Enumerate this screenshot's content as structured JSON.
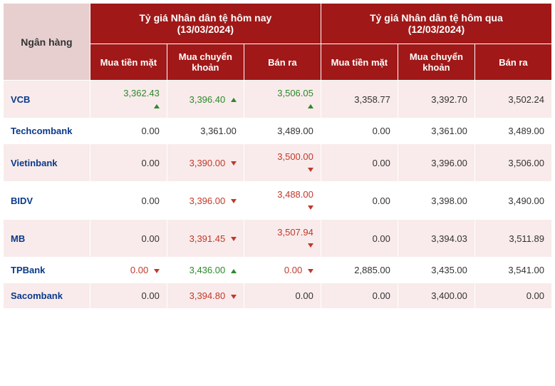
{
  "type": "table",
  "colors": {
    "header_bg": "#a01818",
    "header_text": "#ffffff",
    "bank_header_bg": "#e7cfcf",
    "row_odd_bg": "#f9ebeb",
    "row_even_bg": "#ffffff",
    "bank_link": "#0a3a8b",
    "up": "#2a8a2a",
    "down": "#c0392b",
    "border": "#ffffff"
  },
  "header": {
    "bank_col": "Ngân hàng",
    "today_group": "Tỷ giá Nhân dân tệ hôm nay",
    "today_date": "(13/03/2024)",
    "yesterday_group": "Tỷ giá Nhân dân tệ hôm qua",
    "yesterday_date": "(12/03/2024)",
    "cols": {
      "cash": "Mua tiền mặt",
      "transfer": "Mua chuyển khoản",
      "sell": "Bán ra"
    }
  },
  "rows": [
    {
      "bank": "VCB",
      "today": {
        "cash": {
          "v": "3,362.43",
          "d": "up"
        },
        "transfer": {
          "v": "3,396.40",
          "d": "up"
        },
        "sell": {
          "v": "3,506.05",
          "d": "up"
        }
      },
      "yest": {
        "cash": "3,358.77",
        "transfer": "3,392.70",
        "sell": "3,502.24"
      }
    },
    {
      "bank": "Techcombank",
      "today": {
        "cash": {
          "v": "0.00",
          "d": "flat"
        },
        "transfer": {
          "v": "3,361.00",
          "d": "flat"
        },
        "sell": {
          "v": "3,489.00",
          "d": "flat"
        }
      },
      "yest": {
        "cash": "0.00",
        "transfer": "3,361.00",
        "sell": "3,489.00"
      }
    },
    {
      "bank": "Vietinbank",
      "today": {
        "cash": {
          "v": "0.00",
          "d": "flat"
        },
        "transfer": {
          "v": "3,390.00",
          "d": "down"
        },
        "sell": {
          "v": "3,500.00",
          "d": "down"
        }
      },
      "yest": {
        "cash": "0.00",
        "transfer": "3,396.00",
        "sell": "3,506.00"
      }
    },
    {
      "bank": "BIDV",
      "today": {
        "cash": {
          "v": "0.00",
          "d": "flat"
        },
        "transfer": {
          "v": "3,396.00",
          "d": "down"
        },
        "sell": {
          "v": "3,488.00",
          "d": "down"
        }
      },
      "yest": {
        "cash": "0.00",
        "transfer": "3,398.00",
        "sell": "3,490.00"
      }
    },
    {
      "bank": "MB",
      "today": {
        "cash": {
          "v": "0.00",
          "d": "flat"
        },
        "transfer": {
          "v": "3,391.45",
          "d": "down"
        },
        "sell": {
          "v": "3,507.94",
          "d": "down"
        }
      },
      "yest": {
        "cash": "0.00",
        "transfer": "3,394.03",
        "sell": "3,511.89"
      }
    },
    {
      "bank": "TPBank",
      "today": {
        "cash": {
          "v": "0.00",
          "d": "down"
        },
        "transfer": {
          "v": "3,436.00",
          "d": "up"
        },
        "sell": {
          "v": "0.00",
          "d": "down"
        }
      },
      "yest": {
        "cash": "2,885.00",
        "transfer": "3,435.00",
        "sell": "3,541.00"
      }
    },
    {
      "bank": "Sacombank",
      "today": {
        "cash": {
          "v": "0.00",
          "d": "flat"
        },
        "transfer": {
          "v": "3,394.80",
          "d": "down"
        },
        "sell": {
          "v": "0.00",
          "d": "flat"
        }
      },
      "yest": {
        "cash": "0.00",
        "transfer": "3,400.00",
        "sell": "0.00"
      }
    }
  ]
}
